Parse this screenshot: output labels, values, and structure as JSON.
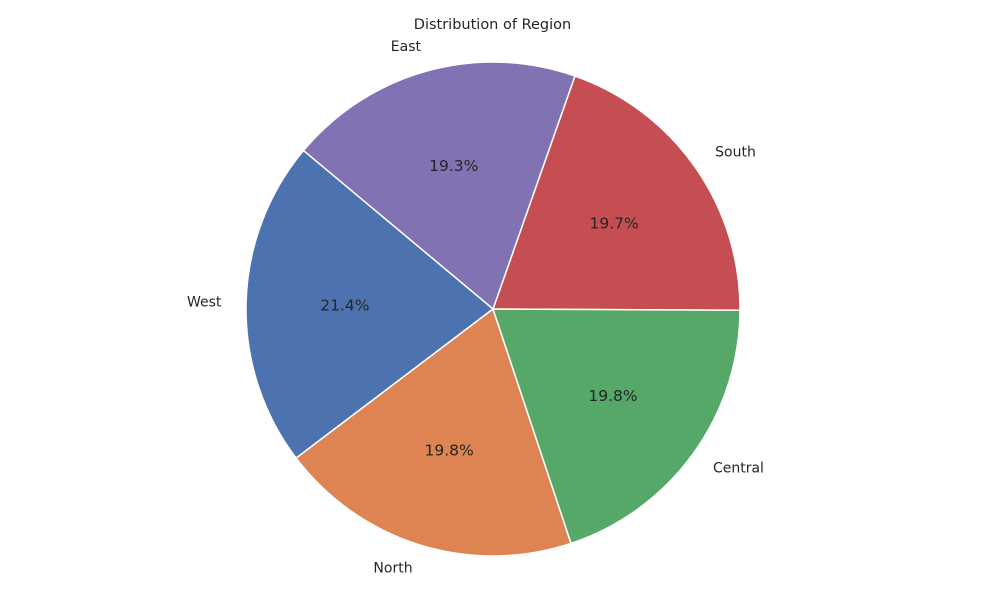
{
  "chart_data": {
    "type": "pie",
    "title": "Distribution of Region",
    "categories": [
      "South",
      "East",
      "West",
      "North",
      "Central"
    ],
    "values": [
      19.7,
      19.3,
      21.4,
      19.8,
      19.8
    ],
    "percent_labels": [
      "19.7%",
      "19.3%",
      "21.4%",
      "19.8%",
      "19.8%"
    ],
    "colors": [
      "#c44e52",
      "#8172b3",
      "#4c72b0",
      "#dd8452",
      "#55a868"
    ],
    "start_angle_deg": -0.3,
    "direction": "counterclockwise",
    "legend": "none"
  }
}
